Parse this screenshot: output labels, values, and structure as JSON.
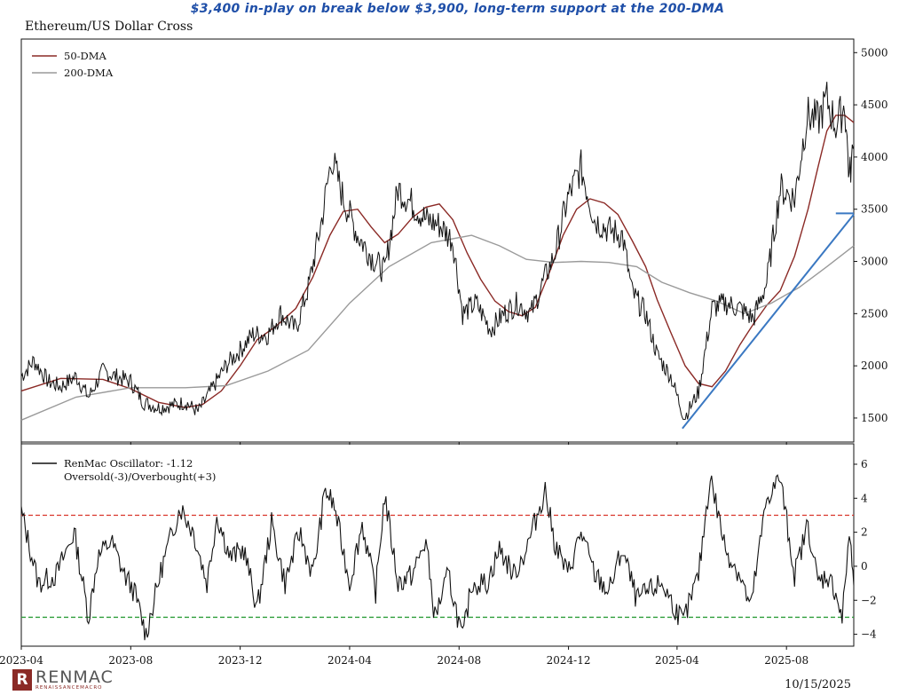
{
  "headline": "$3,400 in-play on break below $3,900, long-term support at the 200-DMA",
  "chart_title": "Ethereum/US Dollar Cross",
  "footer_date": "10/15/2025",
  "logo": {
    "name": "RENMAC",
    "sub": "RENAISSANCEMACRO",
    "mark": "R"
  },
  "colors": {
    "price": "#111111",
    "dma50": "#8b2a26",
    "dma200": "#9a9a9a",
    "trendline": "#3a78c2",
    "oversold": "#2e9e3a",
    "overbought": "#d9342b",
    "oscillator": "#111111"
  },
  "chart_data": [
    {
      "type": "line",
      "panel": "price",
      "x_ticks": [
        "2023-04",
        "2023-08",
        "2023-12",
        "2024-04",
        "2024-08",
        "2024-12",
        "2025-04",
        "2025-08"
      ],
      "y_ticks": [
        1500,
        2000,
        2500,
        3000,
        3500,
        4000,
        4500,
        5000
      ],
      "ylim": [
        1270,
        5130
      ],
      "xlim": [
        "2023-04-01",
        "2025-10-15"
      ],
      "legend_position": "top-left",
      "series": [
        {
          "name": "50-DMA",
          "x": [
            "2023-04-01",
            "2023-05-15",
            "2023-07-01",
            "2023-08-01",
            "2023-09-01",
            "2023-10-01",
            "2023-10-20",
            "2023-11-10",
            "2023-12-01",
            "2023-12-20",
            "2024-01-10",
            "2024-02-01",
            "2024-02-20",
            "2024-03-10",
            "2024-03-25",
            "2024-04-10",
            "2024-04-25",
            "2024-05-10",
            "2024-05-25",
            "2024-06-10",
            "2024-06-25",
            "2024-07-10",
            "2024-07-25",
            "2024-08-10",
            "2024-08-25",
            "2024-09-10",
            "2024-09-25",
            "2024-10-10",
            "2024-10-25",
            "2024-11-10",
            "2024-11-25",
            "2024-12-10",
            "2024-12-25",
            "2025-01-10",
            "2025-01-25",
            "2025-02-10",
            "2025-02-25",
            "2025-03-10",
            "2025-03-25",
            "2025-04-10",
            "2025-04-25",
            "2025-05-10",
            "2025-05-25",
            "2025-06-10",
            "2025-06-25",
            "2025-07-10",
            "2025-07-25",
            "2025-08-10",
            "2025-08-25",
            "2025-09-05",
            "2025-09-15",
            "2025-09-25",
            "2025-10-05",
            "2025-10-15"
          ],
          "values": [
            1760,
            1880,
            1870,
            1780,
            1650,
            1600,
            1630,
            1760,
            2000,
            2250,
            2380,
            2550,
            2850,
            3250,
            3480,
            3500,
            3330,
            3180,
            3260,
            3420,
            3520,
            3550,
            3400,
            3080,
            2830,
            2620,
            2520,
            2480,
            2560,
            2900,
            3250,
            3500,
            3600,
            3560,
            3450,
            3200,
            2950,
            2630,
            2320,
            2000,
            1830,
            1800,
            1950,
            2200,
            2400,
            2580,
            2720,
            3050,
            3500,
            3900,
            4250,
            4400,
            4400,
            4330
          ]
        },
        {
          "name": "200-DMA",
          "x": [
            "2023-04-01",
            "2023-06-01",
            "2023-08-01",
            "2023-10-01",
            "2023-11-15",
            "2024-01-01",
            "2024-02-15",
            "2024-04-01",
            "2024-05-15",
            "2024-07-01",
            "2024-08-15",
            "2024-09-15",
            "2024-10-15",
            "2024-11-15",
            "2024-12-15",
            "2025-01-15",
            "2025-02-15",
            "2025-03-15",
            "2025-04-15",
            "2025-05-15",
            "2025-06-15",
            "2025-07-15",
            "2025-08-15",
            "2025-09-15",
            "2025-10-15"
          ],
          "values": [
            1480,
            1700,
            1790,
            1790,
            1810,
            1950,
            2150,
            2600,
            2950,
            3180,
            3250,
            3150,
            3020,
            2990,
            3000,
            2990,
            2950,
            2800,
            2700,
            2620,
            2500,
            2600,
            2750,
            2950,
            3150
          ]
        },
        {
          "name": "ETH/USD",
          "x": [
            "2023-04-01",
            "2023-04-15",
            "2023-05-01",
            "2023-05-15",
            "2023-06-01",
            "2023-06-15",
            "2023-07-01",
            "2023-07-15",
            "2023-08-01",
            "2023-08-15",
            "2023-09-01",
            "2023-09-15",
            "2023-10-01",
            "2023-10-15",
            "2023-11-01",
            "2023-11-15",
            "2023-12-01",
            "2023-12-15",
            "2024-01-01",
            "2024-01-15",
            "2024-02-01",
            "2024-02-15",
            "2024-03-01",
            "2024-03-12",
            "2024-03-25",
            "2024-04-10",
            "2024-04-25",
            "2024-05-10",
            "2024-05-25",
            "2024-06-10",
            "2024-06-25",
            "2024-07-10",
            "2024-07-25",
            "2024-08-05",
            "2024-08-20",
            "2024-09-05",
            "2024-09-20",
            "2024-10-05",
            "2024-10-20",
            "2024-11-05",
            "2024-11-15",
            "2024-11-30",
            "2024-12-15",
            "2024-12-30",
            "2025-01-15",
            "2025-01-30",
            "2025-02-10",
            "2025-02-25",
            "2025-03-10",
            "2025-03-25",
            "2025-04-09",
            "2025-04-25",
            "2025-05-10",
            "2025-05-25",
            "2025-06-10",
            "2025-06-25",
            "2025-07-10",
            "2025-07-25",
            "2025-08-10",
            "2025-08-24",
            "2025-09-05",
            "2025-09-15",
            "2025-09-25",
            "2025-10-05",
            "2025-10-10",
            "2025-10-15"
          ],
          "values": [
            1900,
            2050,
            1850,
            1800,
            1900,
            1700,
            1950,
            1900,
            1850,
            1650,
            1600,
            1620,
            1650,
            1560,
            1800,
            2000,
            2150,
            2300,
            2300,
            2500,
            2350,
            2750,
            3400,
            4000,
            3600,
            3250,
            3050,
            2900,
            3700,
            3550,
            3400,
            3350,
            3200,
            2500,
            2600,
            2350,
            2500,
            2600,
            2500,
            2850,
            3050,
            3600,
            3900,
            3400,
            3300,
            3250,
            2700,
            2500,
            2100,
            1900,
            1500,
            1750,
            2550,
            2600,
            2550,
            2450,
            2800,
            3700,
            3600,
            4400,
            4350,
            4550,
            4300,
            4500,
            3800,
            4100
          ]
        },
        {
          "name": "trendline",
          "x": [
            "2025-04-07",
            "2025-10-15"
          ],
          "values": [
            1400,
            3450
          ]
        },
        {
          "name": "support",
          "x": [
            "2025-09-25",
            "2025-10-15"
          ],
          "values": [
            3460,
            3460
          ]
        }
      ]
    },
    {
      "type": "line",
      "panel": "oscillator",
      "y_ticks": [
        -4,
        -2,
        0,
        2,
        4,
        6
      ],
      "y_tick_labels": [
        "−4",
        "−2",
        "0",
        "2",
        "4",
        "6"
      ],
      "ylim": [
        -4.7,
        7.2
      ],
      "legend": [
        "RenMac Oscillator: -1.12",
        "Oversold(-3)/Overbought(+3)"
      ],
      "thresholds": {
        "oversold": -3,
        "overbought": 3
      },
      "series": [
        {
          "name": "RenMac Oscillator",
          "x": [
            "2023-04-01",
            "2023-04-20",
            "2023-05-10",
            "2023-05-30",
            "2023-06-15",
            "2023-06-25",
            "2023-07-10",
            "2023-07-25",
            "2023-08-05",
            "2023-08-18",
            "2023-09-05",
            "2023-09-25",
            "2023-10-10",
            "2023-10-25",
            "2023-11-05",
            "2023-11-20",
            "2023-12-05",
            "2023-12-20",
            "2024-01-05",
            "2024-01-20",
            "2024-02-05",
            "2024-02-20",
            "2024-03-05",
            "2024-03-15",
            "2024-04-01",
            "2024-04-15",
            "2024-04-30",
            "2024-05-10",
            "2024-05-25",
            "2024-06-10",
            "2024-06-25",
            "2024-07-05",
            "2024-07-20",
            "2024-08-05",
            "2024-08-15",
            "2024-09-01",
            "2024-09-15",
            "2024-10-01",
            "2024-10-15",
            "2024-11-05",
            "2024-11-15",
            "2024-11-30",
            "2024-12-15",
            "2024-12-30",
            "2025-01-15",
            "2025-01-30",
            "2025-02-15",
            "2025-02-28",
            "2025-03-15",
            "2025-03-30",
            "2025-04-08",
            "2025-04-25",
            "2025-05-08",
            "2025-05-25",
            "2025-06-10",
            "2025-06-22",
            "2025-07-10",
            "2025-07-25",
            "2025-08-10",
            "2025-08-25",
            "2025-09-05",
            "2025-09-15",
            "2025-09-25",
            "2025-10-02",
            "2025-10-10",
            "2025-10-15"
          ],
          "values": [
            3.2,
            -1.0,
            -0.5,
            2.0,
            -3.0,
            0.5,
            1.5,
            -0.5,
            -1.5,
            -4.0,
            0.0,
            3.5,
            2.0,
            -1.0,
            3.0,
            0.5,
            1.0,
            -2.5,
            2.5,
            -1.0,
            2.0,
            -0.5,
            4.5,
            3.5,
            -1.0,
            2.5,
            -1.5,
            4.2,
            -1.0,
            -0.5,
            1.5,
            -3.0,
            -0.5,
            -4.3,
            -1.0,
            -1.0,
            1.0,
            -0.5,
            1.0,
            4.5,
            1.5,
            -0.5,
            2.0,
            -0.5,
            -1.5,
            1.0,
            -2.0,
            -1.5,
            -1.0,
            -2.5,
            -3.3,
            -0.5,
            5.3,
            1.0,
            -0.5,
            -2.5,
            4.0,
            5.2,
            -0.5,
            2.5,
            -1.0,
            -0.5,
            -1.5,
            -3.2,
            2.0,
            -1.12
          ]
        }
      ]
    }
  ]
}
